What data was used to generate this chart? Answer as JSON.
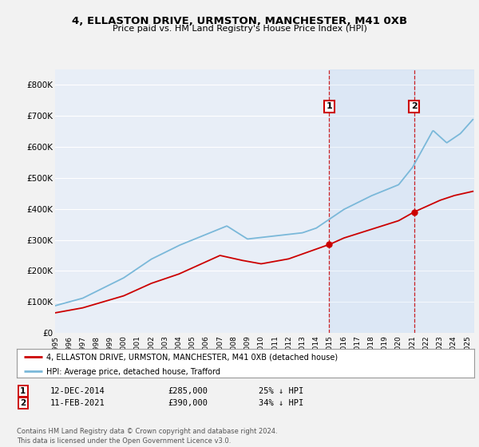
{
  "title": "4, ELLASTON DRIVE, URMSTON, MANCHESTER, M41 0XB",
  "subtitle": "Price paid vs. HM Land Registry's House Price Index (HPI)",
  "ylim": [
    0,
    850000
  ],
  "yticks": [
    0,
    100000,
    200000,
    300000,
    400000,
    500000,
    600000,
    700000,
    800000
  ],
  "ytick_labels": [
    "£0",
    "£100K",
    "£200K",
    "£300K",
    "£400K",
    "£500K",
    "£600K",
    "£700K",
    "£800K"
  ],
  "hpi_color": "#7ab8d9",
  "price_color": "#cc0000",
  "marker1_date": 2014.95,
  "marker1_price": 285000,
  "marker1_label": "12-DEC-2014",
  "marker1_value_str": "£285,000",
  "marker1_pct": "25% ↓ HPI",
  "marker2_date": 2021.12,
  "marker2_price": 390000,
  "marker2_label": "11-FEB-2021",
  "marker2_value_str": "£390,000",
  "marker2_pct": "34% ↓ HPI",
  "legend_label1": "4, ELLASTON DRIVE, URMSTON, MANCHESTER, M41 0XB (detached house)",
  "legend_label2": "HPI: Average price, detached house, Trafford",
  "footer": "Contains HM Land Registry data © Crown copyright and database right 2024.\nThis data is licensed under the Open Government Licence v3.0.",
  "plot_bg_color": "#e8eef7",
  "grid_color": "#ffffff",
  "fig_bg_color": "#f2f2f2",
  "xlim_left": 1995.0,
  "xlim_right": 2025.5
}
